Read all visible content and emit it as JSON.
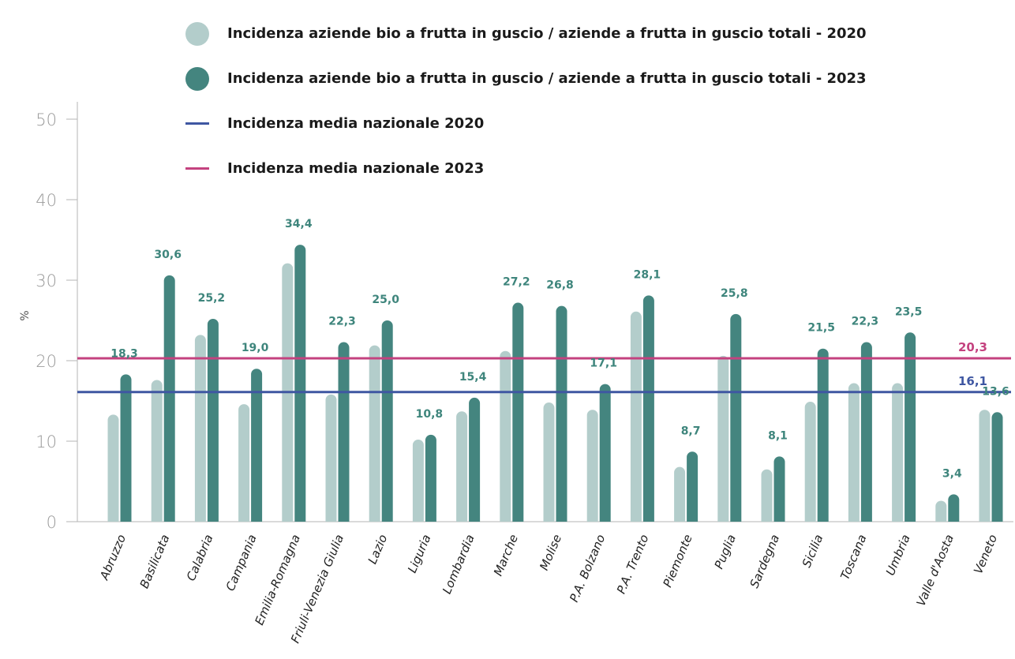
{
  "colors": {
    "series_2020": "#b3cdcb",
    "series_2023": "#44857f",
    "mean_2020": "#3f57a2",
    "mean_2023": "#c4427f",
    "axis": "#b5b5b5"
  },
  "legend": {
    "items": [
      {
        "label": "Incidenza aziende bio a frutta in guscio / aziende a frutta in guscio totali - 2020",
        "shape": "circle",
        "color": "#b3cdcb"
      },
      {
        "label": "Incidenza aziende bio a frutta in guscio / aziende a frutta in guscio totali - 2023",
        "shape": "circle",
        "color": "#44857f"
      },
      {
        "label": "Incidenza media nazionale 2020",
        "shape": "line",
        "color": "#3f57a2"
      },
      {
        "label": "Incidenza media nazionale 2023",
        "shape": "line",
        "color": "#c4427f"
      }
    ]
  },
  "chart_data": {
    "type": "bar",
    "ylabel": "%",
    "ylim": [
      0,
      50
    ],
    "yticks": [
      0,
      10,
      20,
      30,
      40,
      50
    ],
    "grid": false,
    "legend_position": "top",
    "categories": [
      "Abruzzo",
      "Basilicata",
      "Calabria",
      "Campania",
      "Emilia-Romagna",
      "Friuli-Venezia Giulia",
      "Lazio",
      "Liguria",
      "Lombardia",
      "Marche",
      "Molise",
      "P.A. Bolzano",
      "P.A. Trento",
      "Piemonte",
      "Puglia",
      "Sardegna",
      "Sicilia",
      "Toscana",
      "Umbria",
      "Valle d'Aosta",
      "Veneto"
    ],
    "series": [
      {
        "name": "Incidenza aziende bio a frutta in guscio / aziende a frutta in guscio totali - 2020",
        "color": "#b3cdcb",
        "values": [
          13.3,
          17.6,
          23.2,
          14.6,
          32.1,
          15.8,
          21.9,
          10.2,
          13.7,
          21.2,
          14.8,
          13.9,
          26.1,
          6.8,
          20.6,
          6.5,
          14.9,
          17.2,
          17.2,
          2.6,
          13.9
        ]
      },
      {
        "name": "Incidenza aziende bio a frutta in guscio / aziende a frutta in guscio totali - 2023",
        "color": "#44857f",
        "values": [
          18.3,
          30.6,
          25.2,
          19.0,
          34.4,
          22.3,
          25.0,
          10.8,
          15.4,
          27.2,
          26.8,
          17.1,
          28.1,
          8.7,
          25.8,
          8.1,
          21.5,
          22.3,
          23.5,
          3.4,
          13.6
        ]
      }
    ],
    "data_labels": [
      "18,3",
      "30,6",
      "25,2",
      "19,0",
      "34,4",
      "22,3",
      "25,0",
      "10,8",
      "15,4",
      "27,2",
      "26,8",
      "17,1",
      "28,1",
      "8,7",
      "25,8",
      "8,1",
      "21,5",
      "22,3",
      "23,5",
      "3,4",
      "13,6"
    ],
    "reference_lines": [
      {
        "name": "Incidenza media nazionale 2020",
        "value": 16.1,
        "label": "16,1",
        "color": "#3f57a2"
      },
      {
        "name": "Incidenza media nazionale 2023",
        "value": 20.3,
        "label": "20,3",
        "color": "#c4427f"
      }
    ]
  }
}
